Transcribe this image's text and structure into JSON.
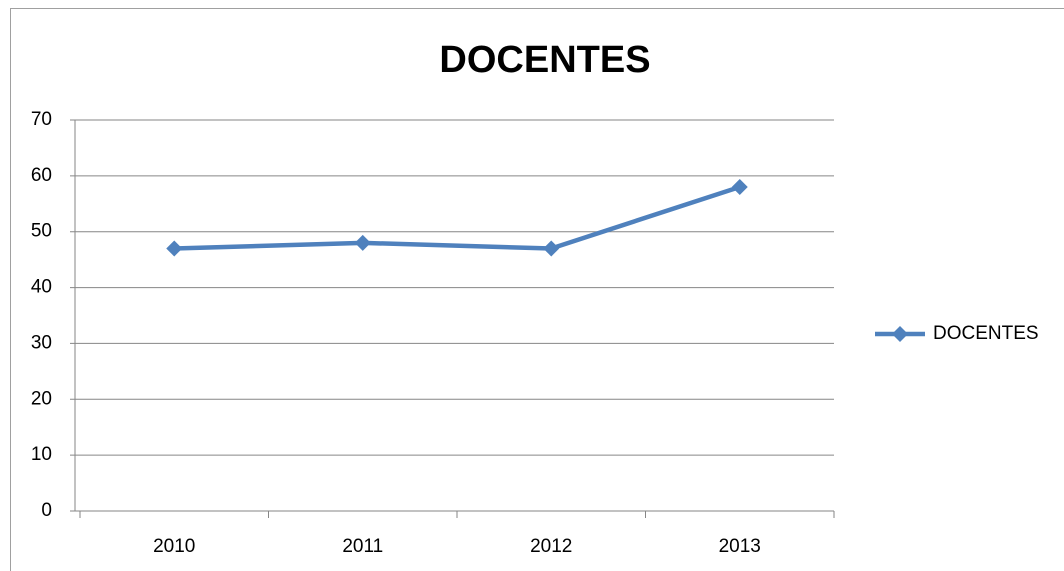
{
  "chart_data": {
    "type": "line",
    "title": "DOCENTES",
    "categories": [
      "2010",
      "2011",
      "2012",
      "2013"
    ],
    "series": [
      {
        "name": "DOCENTES",
        "color": "#4f81bd",
        "values": [
          47,
          48,
          47,
          58
        ]
      }
    ],
    "ylim": [
      0,
      70
    ],
    "yticks": [
      0,
      10,
      20,
      30,
      40,
      50,
      60,
      70
    ],
    "grid": true,
    "legend": "right"
  }
}
